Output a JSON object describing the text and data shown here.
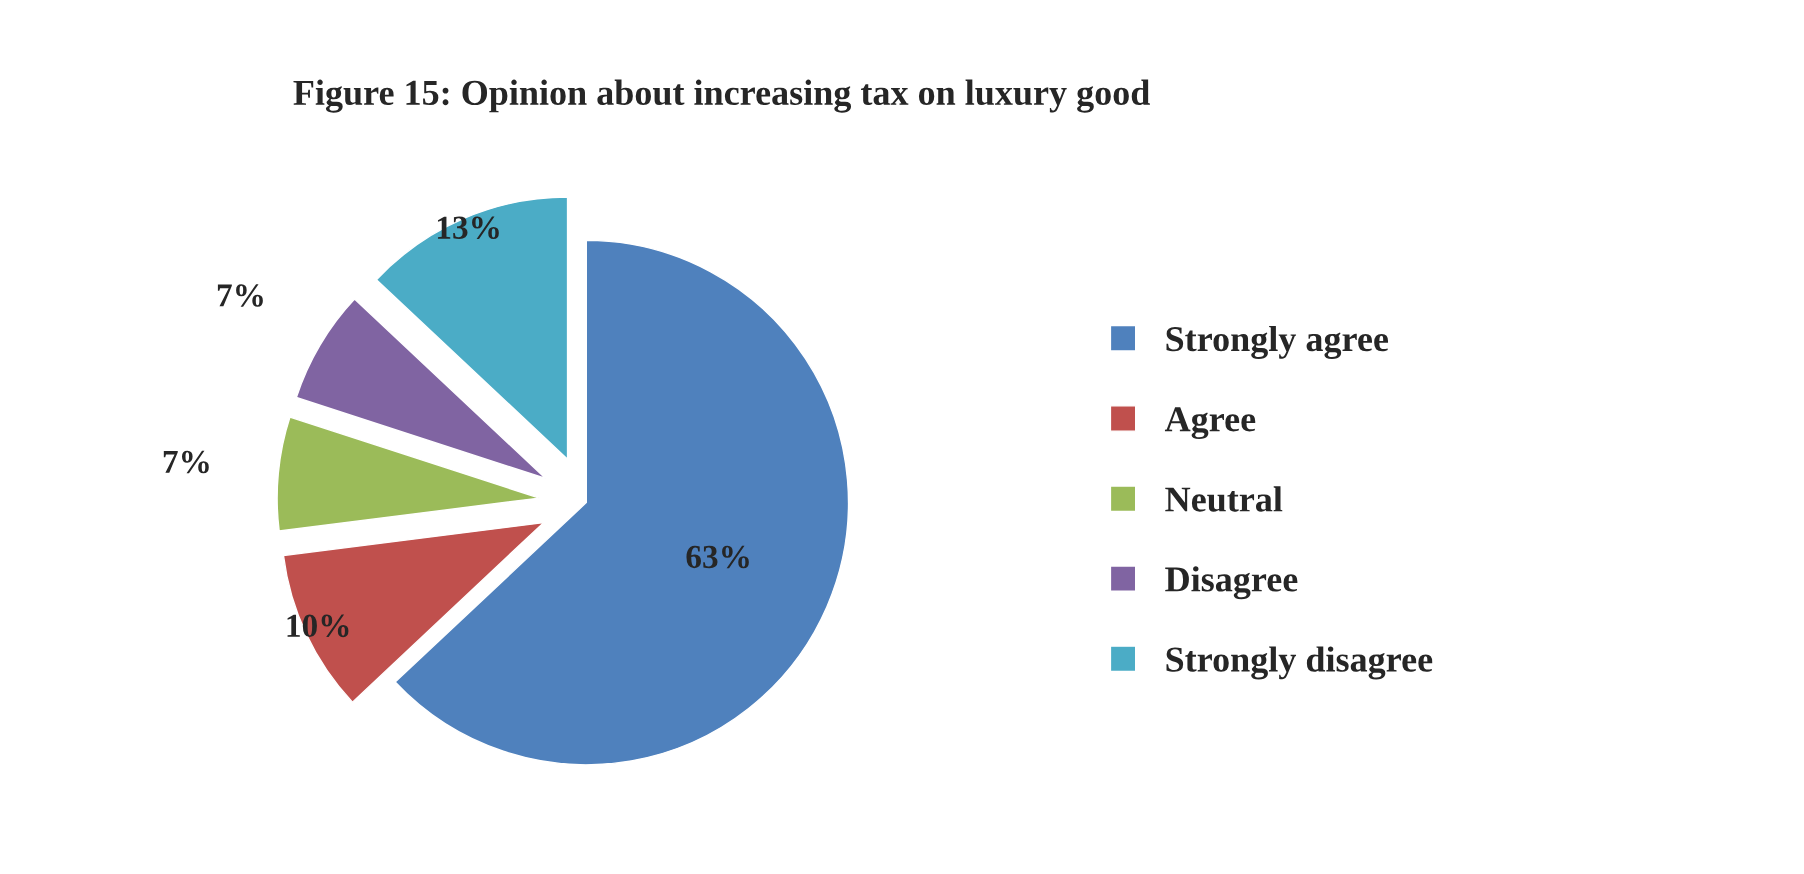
{
  "chart_data": {
    "type": "pie",
    "title": "Figure 15: Opinion about increasing tax on luxury good",
    "categories": [
      "Strongly agree",
      "Agree",
      "Neutral",
      "Disagree",
      "Strongly disagree"
    ],
    "values": [
      63,
      10,
      7,
      7,
      13
    ],
    "value_labels": [
      "63%",
      "10%",
      "7%",
      "7%",
      "13%"
    ],
    "colors": [
      "#4f81bd",
      "#c0504d",
      "#9bbb59",
      "#8064a2",
      "#4bacc6"
    ],
    "legend": "right"
  }
}
